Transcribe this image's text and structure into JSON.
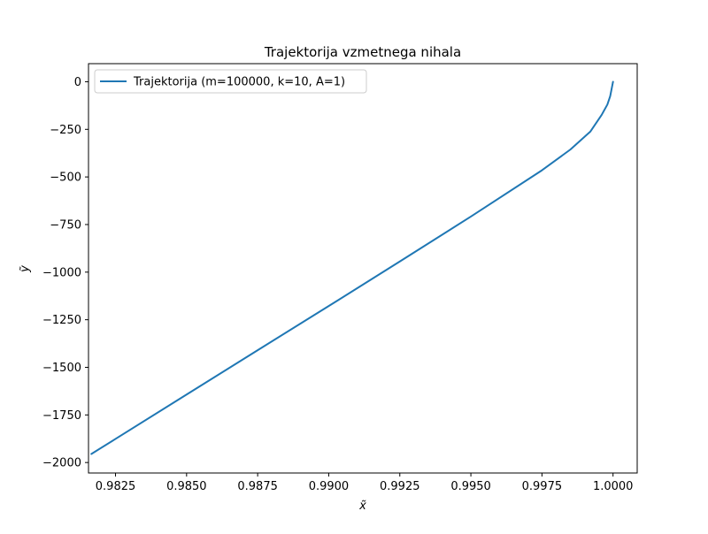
{
  "chart_data": {
    "type": "line",
    "title": "Trajektorija vzmetnega nihala",
    "xlabel": "x̃",
    "ylabel": "ỹ",
    "xlim": [
      0.98155,
      1.00085
    ],
    "ylim": [
      -2055,
      95
    ],
    "xticks": [
      0.9825,
      0.985,
      0.9875,
      0.99,
      0.9925,
      0.995,
      0.9975,
      1.0
    ],
    "xtick_labels": [
      "0.9825",
      "0.9850",
      "0.9875",
      "0.9900",
      "0.9925",
      "0.9950",
      "0.9975",
      "1.0000"
    ],
    "yticks": [
      0,
      -250,
      -500,
      -750,
      -1000,
      -1250,
      -1500,
      -1750,
      -2000
    ],
    "ytick_labels": [
      "0",
      "−250",
      "−500",
      "−750",
      "−1000",
      "−1250",
      "−1500",
      "−1750",
      "−2000"
    ],
    "grid": false,
    "legend_position": "top-left",
    "series": [
      {
        "name": "Trajektorija (m=100000, k=10, A=1)",
        "color": "#1f77b4",
        "points": [
          [
            0.98165,
            -1955
          ],
          [
            0.9825,
            -1876
          ],
          [
            0.985,
            -1643
          ],
          [
            0.9875,
            -1410
          ],
          [
            0.99,
            -1178
          ],
          [
            0.9925,
            -944
          ],
          [
            0.995,
            -708
          ],
          [
            0.9975,
            -465
          ],
          [
            0.9985,
            -356
          ],
          [
            0.9992,
            -262
          ],
          [
            0.9996,
            -174
          ],
          [
            0.9998,
            -120
          ],
          [
            0.9999,
            -76
          ],
          [
            1.0,
            0
          ]
        ]
      }
    ]
  }
}
